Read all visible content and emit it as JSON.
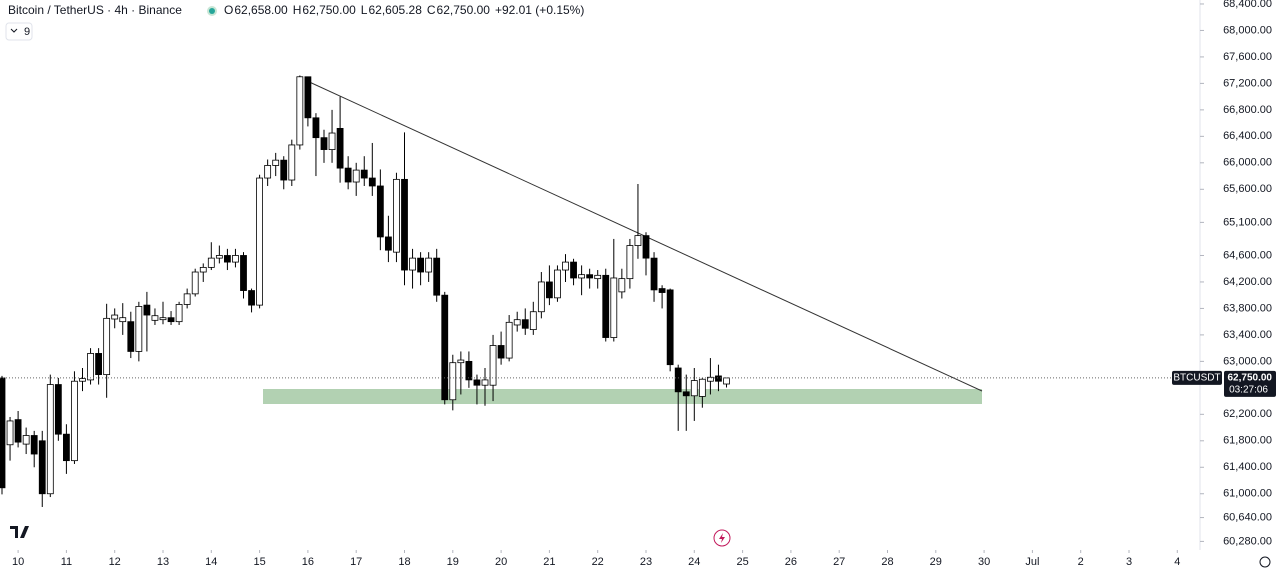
{
  "chart_data": {
    "type": "candlestick",
    "title": "Bitcoin / TetherUS · 4h · Binance",
    "ohlc_labels": [
      {
        "label": "O",
        "value": "62,658.00"
      },
      {
        "label": "H",
        "value": "62,750.00"
      },
      {
        "label": "L",
        "value": "62,605.28"
      },
      {
        "label": "C",
        "value": "62,750.00"
      }
    ],
    "change": "+92.01 (+0.15%)",
    "indicator_count": "9",
    "price_label": {
      "name": "BTCUSDT",
      "value": "62,750.00",
      "countdown": "03:27:06"
    },
    "up_color": "#ffffff",
    "down_color": "#000000",
    "border_color": "#000000",
    "ylim": [
      60150,
      68460
    ],
    "yticks": [
      {
        "value": 68400,
        "label": "68,400.00"
      },
      {
        "value": 68000,
        "label": "68,000.00"
      },
      {
        "value": 67600,
        "label": "67,600.00"
      },
      {
        "value": 67200,
        "label": "67,200.00"
      },
      {
        "value": 66800,
        "label": "66,800.00"
      },
      {
        "value": 66400,
        "label": "66,400.00"
      },
      {
        "value": 66000,
        "label": "66,000.00"
      },
      {
        "value": 65600,
        "label": "65,600.00"
      },
      {
        "value": 65100,
        "label": "65,100.00"
      },
      {
        "value": 64600,
        "label": "64,600.00"
      },
      {
        "value": 64200,
        "label": "64,200.00"
      },
      {
        "value": 63800,
        "label": "63,800.00"
      },
      {
        "value": 63400,
        "label": "63,400.00"
      },
      {
        "value": 63000,
        "label": "63,000.00"
      },
      {
        "value": 62200,
        "label": "62,200.00"
      },
      {
        "value": 61800,
        "label": "61,800.00"
      },
      {
        "value": 61400,
        "label": "61,400.00"
      },
      {
        "value": 61000,
        "label": "61,000.00"
      },
      {
        "value": 60640,
        "label": "60,640.00"
      },
      {
        "value": 60280,
        "label": "60,280.00"
      }
    ],
    "xticks": [
      {
        "value": 2,
        "label": "10"
      },
      {
        "value": 8,
        "label": "11"
      },
      {
        "value": 14,
        "label": "12"
      },
      {
        "value": 20,
        "label": "13"
      },
      {
        "value": 26,
        "label": "14"
      },
      {
        "value": 32,
        "label": "15"
      },
      {
        "value": 38,
        "label": "16"
      },
      {
        "value": 44,
        "label": "17"
      },
      {
        "value": 50,
        "label": "18"
      },
      {
        "value": 56,
        "label": "19"
      },
      {
        "value": 62,
        "label": "20"
      },
      {
        "value": 68,
        "label": "21"
      },
      {
        "value": 74,
        "label": "22"
      },
      {
        "value": 80,
        "label": "23"
      },
      {
        "value": 86,
        "label": "24"
      },
      {
        "value": 92,
        "label": "25"
      },
      {
        "value": 98,
        "label": "26"
      },
      {
        "value": 104,
        "label": "27"
      },
      {
        "value": 110,
        "label": "28"
      },
      {
        "value": 116,
        "label": "29"
      },
      {
        "value": 122,
        "label": "30"
      },
      {
        "value": 128,
        "label": "Jul"
      },
      {
        "value": 134,
        "label": "2"
      },
      {
        "value": 140,
        "label": "3"
      },
      {
        "value": 146,
        "label": "4"
      }
    ],
    "series": [
      {
        "name": "BTCUSDT",
        "open": [
          62750,
          61740,
          62120,
          61750,
          61880,
          61800,
          61000,
          62650,
          61900,
          61500,
          62700,
          62720,
          63120,
          62800,
          63640,
          63600,
          63600,
          63150,
          63850,
          63620,
          63630,
          63660,
          63600,
          63860,
          64020,
          64350,
          64420,
          64560,
          64600,
          64500,
          64600,
          64070,
          63850,
          65770,
          65960,
          66040,
          65740,
          66270,
          67300,
          66680,
          66380,
          66200,
          66520,
          65920,
          65710,
          65890,
          65770,
          65650,
          64880,
          64650,
          65750,
          64380,
          64560,
          64350,
          64560,
          64000,
          62420,
          62980,
          63000,
          62720,
          62640,
          62640,
          63240,
          63050,
          63550,
          63630,
          63480,
          63750,
          64200,
          63960,
          64380,
          64500,
          64260,
          64310,
          64250,
          64300,
          63360,
          64050,
          64250,
          64750,
          64900,
          64560,
          64100,
          64080,
          62900,
          62540,
          62480,
          62470,
          62700,
          62780,
          62658
        ],
        "high": [
          62780,
          62160,
          62250,
          62000,
          61950,
          61950,
          62800,
          62750,
          62050,
          62850,
          62900,
          63200,
          63200,
          63870,
          63800,
          63880,
          63750,
          63900,
          64050,
          63800,
          63900,
          63760,
          63900,
          64100,
          64400,
          64480,
          64800,
          64750,
          64700,
          64700,
          64650,
          64100,
          65820,
          66050,
          66150,
          66100,
          66350,
          67320,
          67300,
          66750,
          66500,
          66800,
          67000,
          66100,
          66000,
          66100,
          66300,
          65900,
          65200,
          65850,
          66460,
          64700,
          64650,
          64650,
          64700,
          64050,
          63100,
          63150,
          63150,
          62800,
          62900,
          63400,
          63450,
          63700,
          63750,
          63800,
          63900,
          64350,
          64450,
          64450,
          64620,
          64550,
          64450,
          64400,
          64380,
          64400,
          64850,
          64400,
          64850,
          65680,
          64950,
          64650,
          64150,
          64100,
          62950,
          62800,
          62900,
          62750,
          63050,
          62950,
          62750
        ],
        "low": [
          60990,
          61500,
          61700,
          61600,
          61400,
          60800,
          60950,
          61800,
          61300,
          61450,
          62550,
          62650,
          62650,
          62450,
          63500,
          63400,
          63050,
          63000,
          63150,
          63550,
          63560,
          63550,
          63550,
          63800,
          63980,
          64200,
          64380,
          64480,
          64380,
          64420,
          63950,
          63740,
          63800,
          65650,
          65800,
          65600,
          65650,
          66200,
          66550,
          65800,
          66000,
          66000,
          65700,
          65600,
          65500,
          65650,
          65500,
          64680,
          64500,
          64500,
          64150,
          64100,
          64150,
          64200,
          63900,
          62350,
          62260,
          62500,
          62600,
          62350,
          62330,
          62400,
          62950,
          63000,
          63450,
          63400,
          63400,
          63650,
          63850,
          63900,
          64200,
          64150,
          64000,
          64100,
          64100,
          63300,
          63300,
          63950,
          64100,
          64550,
          64300,
          63900,
          63800,
          62850,
          61950,
          61950,
          62100,
          62300,
          62500,
          62550,
          62605.28
        ],
        "close": [
          61090,
          62100,
          61780,
          61880,
          61600,
          61000,
          62650,
          61900,
          61500,
          62700,
          62740,
          63120,
          62800,
          63650,
          63700,
          63660,
          63150,
          63830,
          63700,
          63690,
          63660,
          63600,
          63860,
          64020,
          64350,
          64420,
          64560,
          64600,
          64500,
          64600,
          64070,
          63850,
          65770,
          65960,
          66040,
          65740,
          66270,
          67300,
          66680,
          66380,
          66200,
          66450,
          65920,
          65710,
          65890,
          65770,
          65650,
          64880,
          64680,
          65750,
          64380,
          64560,
          64350,
          64560,
          64000,
          62420,
          62980,
          63020,
          62720,
          62640,
          62720,
          63240,
          63050,
          63590,
          63630,
          63500,
          63750,
          64200,
          63960,
          64380,
          64500,
          64260,
          64310,
          64260,
          64300,
          63360,
          64260,
          64250,
          64750,
          64900,
          64560,
          64080,
          64040,
          62950,
          62540,
          62480,
          62710,
          62730,
          62760,
          62700,
          62750
        ]
      }
    ]
  }
}
